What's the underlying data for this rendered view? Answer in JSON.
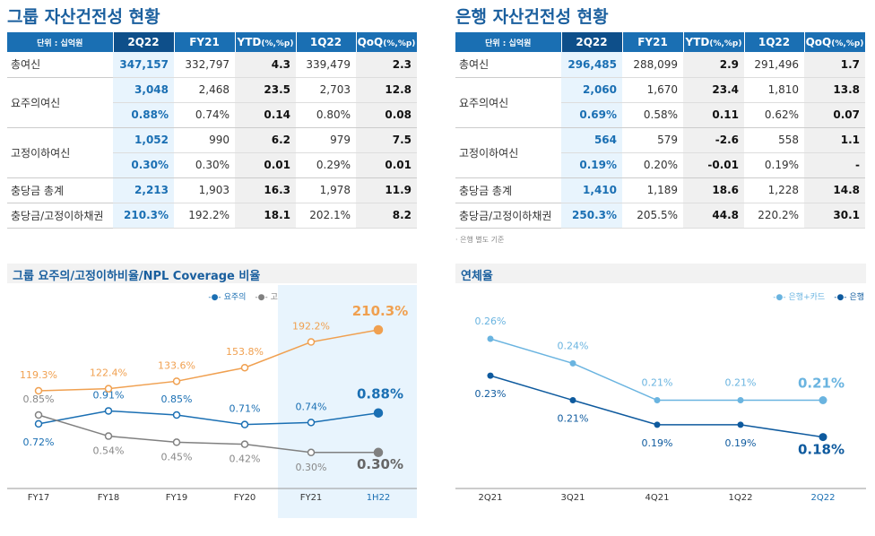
{
  "group": {
    "title": "그룹 자산건전성 현황",
    "headers": [
      "단위 : 십억원",
      "2Q22",
      "FY21",
      "YTD",
      "1Q22",
      "QoQ"
    ],
    "pct_suffix": "(%,%p)",
    "rows": [
      {
        "label": "총여신",
        "values": [
          "347,157",
          "332,797",
          "4.3",
          "339,479",
          "2.3"
        ]
      },
      {
        "label": "요주의여신",
        "values": [
          "3,048",
          "2,468",
          "23.5",
          "2,703",
          "12.8"
        ],
        "sub": [
          "0.88%",
          "0.74%",
          "0.14",
          "0.80%",
          "0.08"
        ]
      },
      {
        "label": "고정이하여신",
        "values": [
          "1,052",
          "990",
          "6.2",
          "979",
          "7.5"
        ],
        "sub": [
          "0.30%",
          "0.30%",
          "0.01",
          "0.29%",
          "0.01"
        ]
      },
      {
        "label": "충당금 총계",
        "values": [
          "2,213",
          "1,903",
          "16.3",
          "1,978",
          "11.9"
        ]
      },
      {
        "label": "충당금/고정이하채권",
        "values": [
          "210.3%",
          "192.2%",
          "18.1",
          "202.1%",
          "8.2"
        ]
      }
    ]
  },
  "bank": {
    "title": "은행 자산건전성 현황",
    "headers": [
      "단위 : 십억원",
      "2Q22",
      "FY21",
      "YTD",
      "1Q22",
      "QoQ"
    ],
    "pct_suffix": "(%,%p)",
    "rows": [
      {
        "label": "총여신",
        "values": [
          "296,485",
          "288,099",
          "2.9",
          "291,496",
          "1.7"
        ]
      },
      {
        "label": "요주의여신",
        "values": [
          "2,060",
          "1,670",
          "23.4",
          "1,810",
          "13.8"
        ],
        "sub": [
          "0.69%",
          "0.58%",
          "0.11",
          "0.62%",
          "0.07"
        ]
      },
      {
        "label": "고정이하여신",
        "values": [
          "564",
          "579",
          "-2.6",
          "558",
          "1.1"
        ],
        "sub": [
          "0.19%",
          "0.20%",
          "-0.01",
          "0.19%",
          "-"
        ]
      },
      {
        "label": "충당금 총계",
        "values": [
          "1,410",
          "1,189",
          "18.6",
          "1,228",
          "14.8"
        ]
      },
      {
        "label": "충당금/고정이하채권",
        "values": [
          "250.3%",
          "205.5%",
          "44.8",
          "220.2%",
          "30.1"
        ]
      }
    ],
    "note": "· 은행 별도 기준"
  },
  "chart_data": [
    {
      "type": "line",
      "title": "그룹 요주의/고정이하비율/NPL Coverage 비율",
      "categories": [
        "FY17",
        "FY18",
        "FY19",
        "FY20",
        "FY21",
        "1H22"
      ],
      "series": [
        {
          "name": "요주의",
          "color": "#1a6fb3",
          "values": [
            0.72,
            0.91,
            0.85,
            0.71,
            0.74,
            0.88
          ],
          "labels": [
            "0.72%",
            "0.91%",
            "0.85%",
            "0.71%",
            "0.74%",
            "0.88%"
          ]
        },
        {
          "name": "고정이하 비율",
          "color": "#808080",
          "values": [
            0.85,
            0.54,
            0.45,
            0.42,
            0.3,
            0.3
          ],
          "labels": [
            "0.85%",
            "0.54%",
            "0.45%",
            "0.42%",
            "0.30%",
            "0.30%"
          ]
        },
        {
          "name": "NPL Coverage 비율",
          "color": "#f0a050",
          "values": [
            119.3,
            122.4,
            133.6,
            153.8,
            192.2,
            210.3
          ],
          "labels": [
            "119.3%",
            "122.4%",
            "133.6%",
            "153.8%",
            "192.2%",
            "210.3%"
          ]
        }
      ],
      "highlight": [
        "FY21",
        "1H22"
      ],
      "legend": "top-right"
    },
    {
      "type": "line",
      "title": "연체율",
      "categories": [
        "2Q21",
        "3Q21",
        "4Q21",
        "1Q22",
        "2Q22"
      ],
      "series": [
        {
          "name": "은행+카드",
          "color": "#6ab4e0",
          "values": [
            0.26,
            0.24,
            0.21,
            0.21,
            0.21
          ],
          "labels": [
            "0.26%",
            "0.24%",
            "0.21%",
            "0.21%",
            "0.21%"
          ]
        },
        {
          "name": "은행",
          "color": "#0e5a9e",
          "values": [
            0.23,
            0.21,
            0.19,
            0.19,
            0.18
          ],
          "labels": [
            "0.23%",
            "0.21%",
            "0.19%",
            "0.19%",
            "0.18%"
          ]
        }
      ],
      "legend": "top-right"
    }
  ]
}
